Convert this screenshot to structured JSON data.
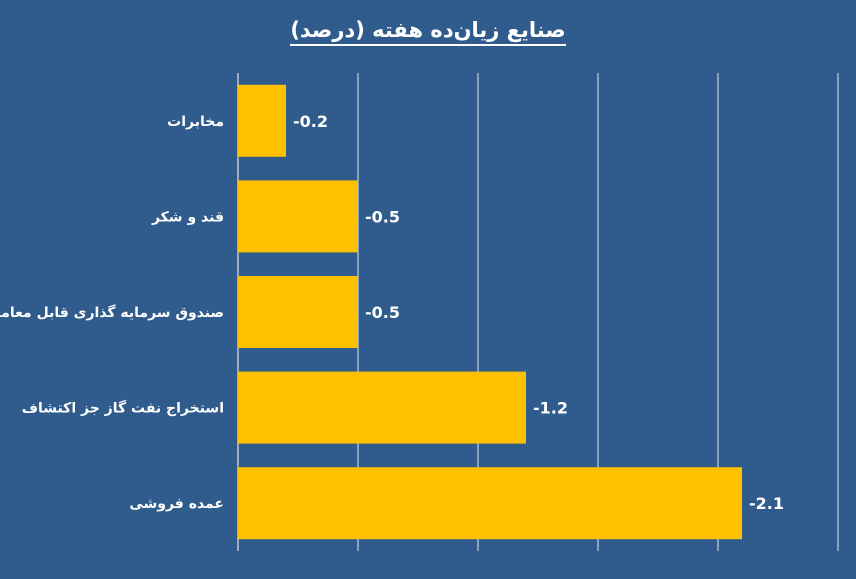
{
  "chart_data": {
    "type": "bar",
    "orientation": "horizontal",
    "title": "صنایع زیان‌ده هفته (درصد)",
    "categories": [
      "مخابرات",
      "قند و شکر",
      "صندوق سرمایه گذاری قابل معامله",
      "استخراج نفت گاز جز اکتشاف",
      "عمده فروشی"
    ],
    "values": [
      -0.2,
      -0.5,
      -0.5,
      -1.2,
      -2.1
    ],
    "value_labels": [
      "-0.2",
      "-0.5",
      "-0.5",
      "-1.2",
      "-2.1"
    ],
    "xlim": [
      0,
      -2.5
    ],
    "grid": true,
    "bar_color": "#ffc000",
    "background_color": "#2f5c8c",
    "gridline_color": "#ffffff",
    "text_color": "#ffffff"
  }
}
